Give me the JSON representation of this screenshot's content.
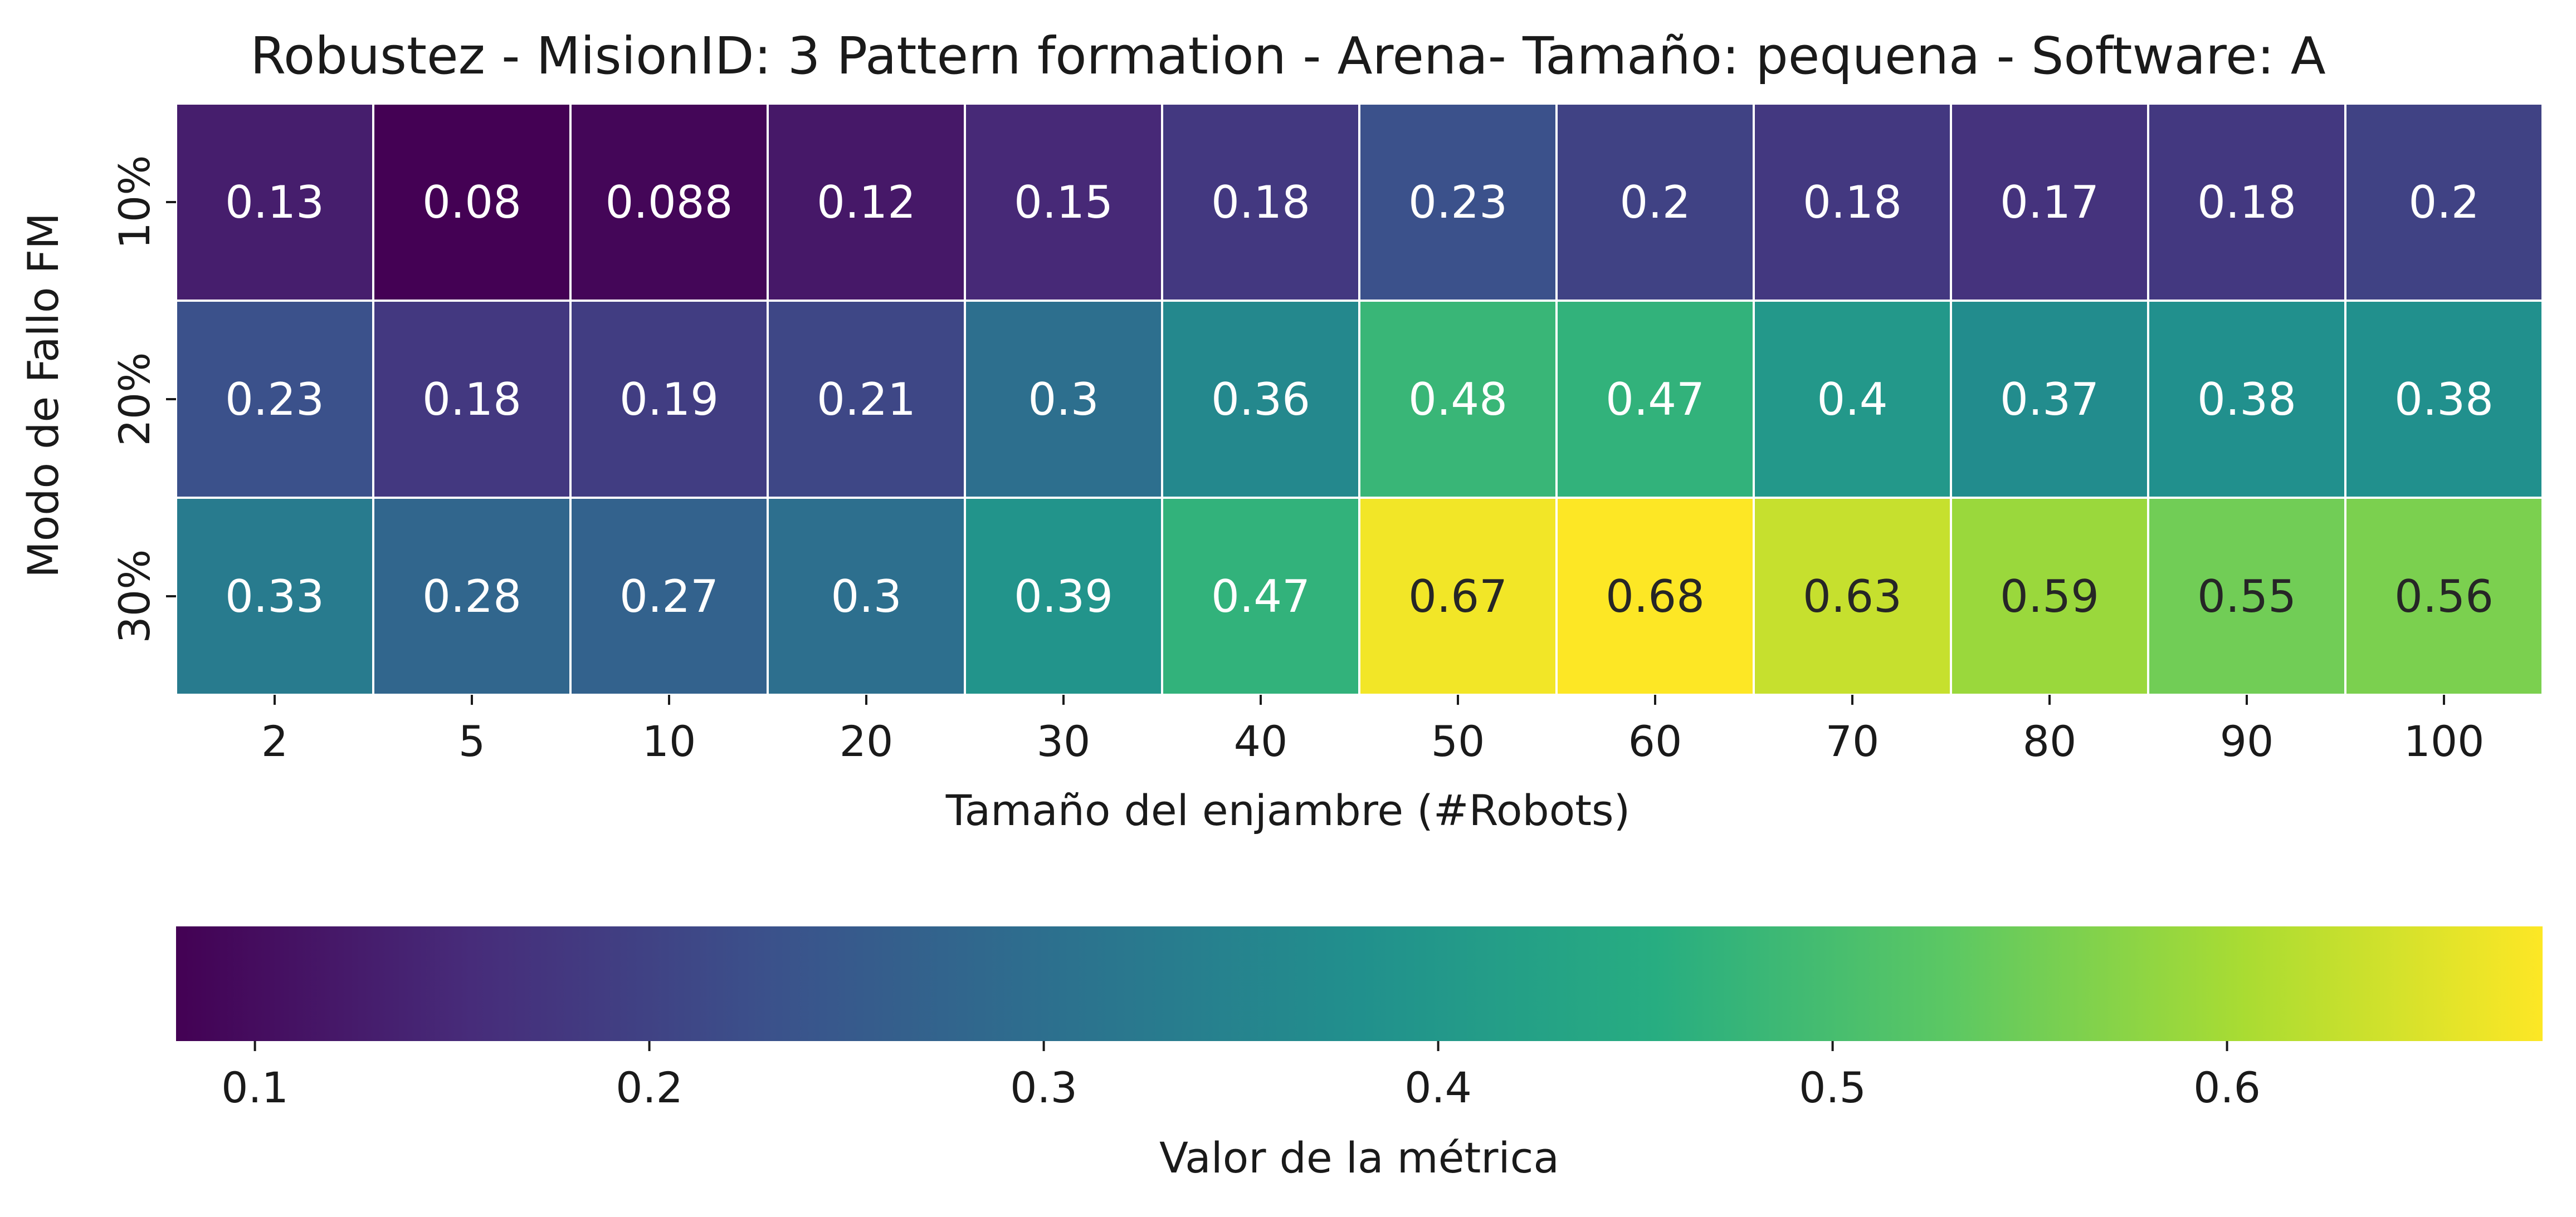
{
  "chart_data": {
    "type": "heatmap",
    "title": "Robustez - MisionID: 3 Pattern formation - Arena- Tamaño: pequena - Software: A",
    "xlabel": "Tamaño del enjambre (#Robots)",
    "ylabel": "Modo de Fallo FM",
    "x_categories": [
      "2",
      "5",
      "10",
      "20",
      "30",
      "40",
      "50",
      "60",
      "70",
      "80",
      "90",
      "100"
    ],
    "y_categories": [
      "10%",
      "20%",
      "30%"
    ],
    "values": [
      [
        0.13,
        0.08,
        0.088,
        0.12,
        0.15,
        0.18,
        0.23,
        0.2,
        0.18,
        0.17,
        0.18,
        0.2
      ],
      [
        0.23,
        0.18,
        0.19,
        0.21,
        0.3,
        0.36,
        0.48,
        0.47,
        0.4,
        0.37,
        0.38,
        0.38
      ],
      [
        0.33,
        0.28,
        0.27,
        0.3,
        0.39,
        0.47,
        0.67,
        0.68,
        0.63,
        0.59,
        0.55,
        0.56
      ]
    ],
    "cell_labels": [
      [
        "0.13",
        "0.08",
        "0.088",
        "0.12",
        "0.15",
        "0.18",
        "0.23",
        "0.2",
        "0.18",
        "0.17",
        "0.18",
        "0.2"
      ],
      [
        "0.23",
        "0.18",
        "0.19",
        "0.21",
        "0.3",
        "0.36",
        "0.48",
        "0.47",
        "0.4",
        "0.37",
        "0.38",
        "0.38"
      ],
      [
        "0.33",
        "0.28",
        "0.27",
        "0.3",
        "0.39",
        "0.47",
        "0.67",
        "0.68",
        "0.63",
        "0.59",
        "0.55",
        "0.56"
      ]
    ],
    "colormap": "viridis",
    "colorbar": {
      "label": "Valor de la métrica",
      "range": [
        0.08,
        0.68
      ],
      "ticks": [
        0.1,
        0.2,
        0.3,
        0.4,
        0.5,
        0.6
      ],
      "tick_labels": [
        "0.1",
        "0.2",
        "0.3",
        "0.4",
        "0.5",
        "0.6"
      ],
      "placement": "bottom"
    },
    "text_colors": {
      "light": "#ffffff",
      "dark": "#262626"
    },
    "grid_line_color": "#ffffff"
  }
}
